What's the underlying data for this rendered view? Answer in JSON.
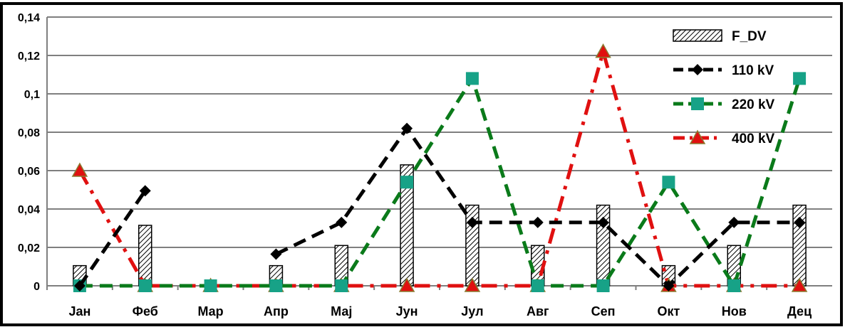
{
  "chart_data": {
    "type": "bar",
    "title": "",
    "xlabel": "",
    "ylabel": "",
    "categories": [
      "Јан",
      "Феб",
      "Мар",
      "Апр",
      "Мај",
      "Јун",
      "Јул",
      "Авг",
      "Сеп",
      "Окт",
      "Нов",
      "Дец"
    ],
    "ylim": [
      0,
      0.14
    ],
    "yticks": [
      0,
      0.02,
      0.04,
      0.06,
      0.08,
      0.1,
      0.12,
      0.14
    ],
    "ytick_labels": [
      "0",
      "0,02",
      "0,04",
      "0,06",
      "0,08",
      "0,1",
      "0,12",
      "0,14"
    ],
    "grid": true,
    "legend_position": "top-right",
    "series": [
      {
        "name": "F_DV",
        "kind": "bar",
        "color": "#000000",
        "values": [
          0.0105,
          0.0315,
          0,
          0.0105,
          0.021,
          0.063,
          0.042,
          0.021,
          0.042,
          0.0105,
          0.021,
          0.042
        ]
      },
      {
        "name": "110 kV",
        "kind": "line",
        "color": "#000000",
        "marker": "diamond",
        "dash": "dashed",
        "values": [
          0,
          0.0495,
          null,
          0.0165,
          0.033,
          0.082,
          0.033,
          0.033,
          0.033,
          0,
          0.033,
          0.033
        ]
      },
      {
        "name": "220 kV",
        "kind": "line",
        "color": "#0a7a1a",
        "marker": "square",
        "dash": "dashed",
        "markerColor": "#17a287",
        "values": [
          0,
          0,
          0,
          0,
          0,
          0.054,
          0.108,
          0,
          0,
          0.054,
          0,
          0.108
        ]
      },
      {
        "name": "400 kV",
        "kind": "line",
        "color": "#e01010",
        "marker": "triangle",
        "dash": "dashdot",
        "markerColor": "#e01010",
        "values": [
          0.06,
          0,
          0,
          0,
          0,
          0,
          0,
          0,
          0.122,
          0,
          0,
          0
        ]
      }
    ]
  }
}
